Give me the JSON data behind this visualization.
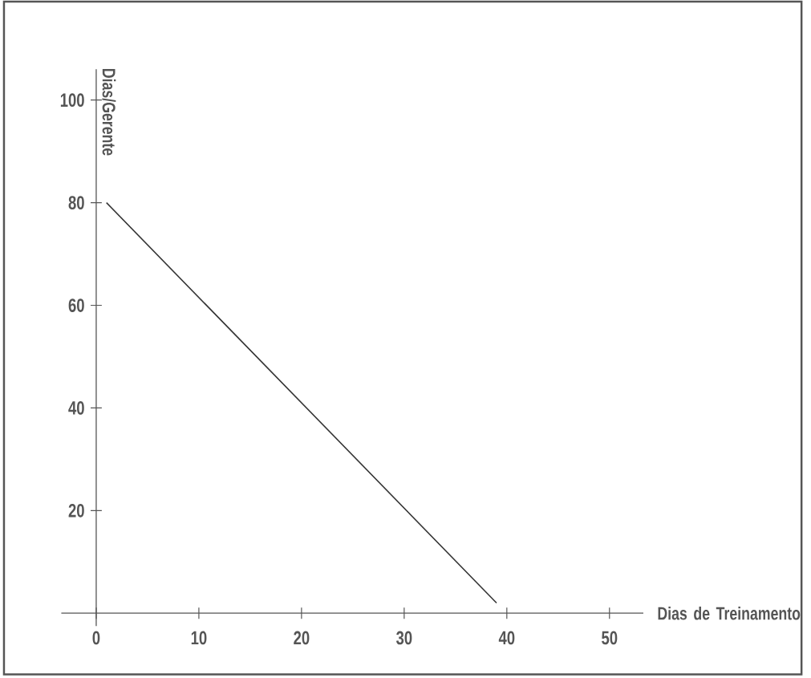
{
  "chart_data": {
    "type": "line",
    "xlabel": "Dias de Treinamento",
    "ylabel": "Dias/Gerente",
    "x": [
      1,
      39
    ],
    "values": [
      80,
      2
    ],
    "color": "#333333",
    "line_style": "solid",
    "xlim": [
      -3.4,
      53.3
    ],
    "ylim": [
      -2.5,
      106
    ],
    "xticks": [
      0,
      10,
      20,
      30,
      40,
      50
    ],
    "yticks": [
      20,
      40,
      60,
      80,
      100
    ]
  }
}
